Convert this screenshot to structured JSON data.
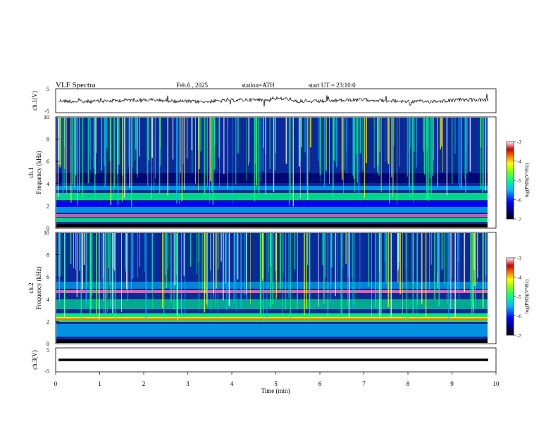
{
  "header": {
    "title": "VLF Spectra",
    "date": "Feb.6 , 2025",
    "station": "station=ATH",
    "start": "start UT = 23:10:0"
  },
  "chart_data": [
    {
      "type": "line",
      "panel": "ch1-waveform",
      "ylabel": "ch.1(V)",
      "ylim": [
        -5,
        5
      ],
      "yticks": [
        "5",
        "-5"
      ],
      "xlim": [
        0,
        10
      ],
      "series": [
        {
          "values_description_free": true
        }
      ]
    },
    {
      "type": "heatmap",
      "panel": "ch1-spectrogram",
      "ylabel_line1": "ch.1",
      "ylabel_line2": "Frequency (kHz)",
      "ylim": [
        0,
        10
      ],
      "yticks": [
        "0",
        "2",
        "4",
        "6",
        "8",
        "10"
      ],
      "xlim": [
        0,
        10
      ],
      "colorbar": {
        "label": "log(PSD)(V²/Hz)",
        "range": [
          -7,
          -3
        ],
        "ticks": [
          "-3",
          "-4",
          "-5",
          "-6",
          "-7"
        ]
      }
    },
    {
      "type": "heatmap",
      "panel": "ch2-spectrogram",
      "ylabel_line1": "ch.2",
      "ylabel_line2": "Frequency (kHz)",
      "ylim": [
        0,
        10
      ],
      "yticks": [
        "0",
        "2",
        "4",
        "6",
        "8",
        "10"
      ],
      "xlim": [
        0,
        10
      ],
      "colorbar": {
        "label": "log(PSD)(V²/Hz)",
        "range": [
          -7,
          -3
        ],
        "ticks": [
          "-3",
          "-4",
          "-5",
          "-6",
          "-7"
        ]
      }
    },
    {
      "type": "line",
      "panel": "ch3-waveform",
      "ylabel": "ch.3(V)",
      "ylim": [
        -5,
        5
      ],
      "yticks": [
        "5",
        "-5"
      ],
      "xlim": [
        0,
        10
      ],
      "xlabel": "Time (min)",
      "xticks": [
        "0",
        "1",
        "2",
        "3",
        "4",
        "5",
        "6",
        "7",
        "8",
        "9",
        "10"
      ]
    }
  ],
  "colors": {
    "colormap": [
      "#000000",
      "#00008b",
      "#0000ff",
      "#00bfff",
      "#00ff7f",
      "#7fff00",
      "#ffff00",
      "#ff8c00",
      "#ff0000",
      "#cc0000",
      "#ffffff"
    ]
  }
}
